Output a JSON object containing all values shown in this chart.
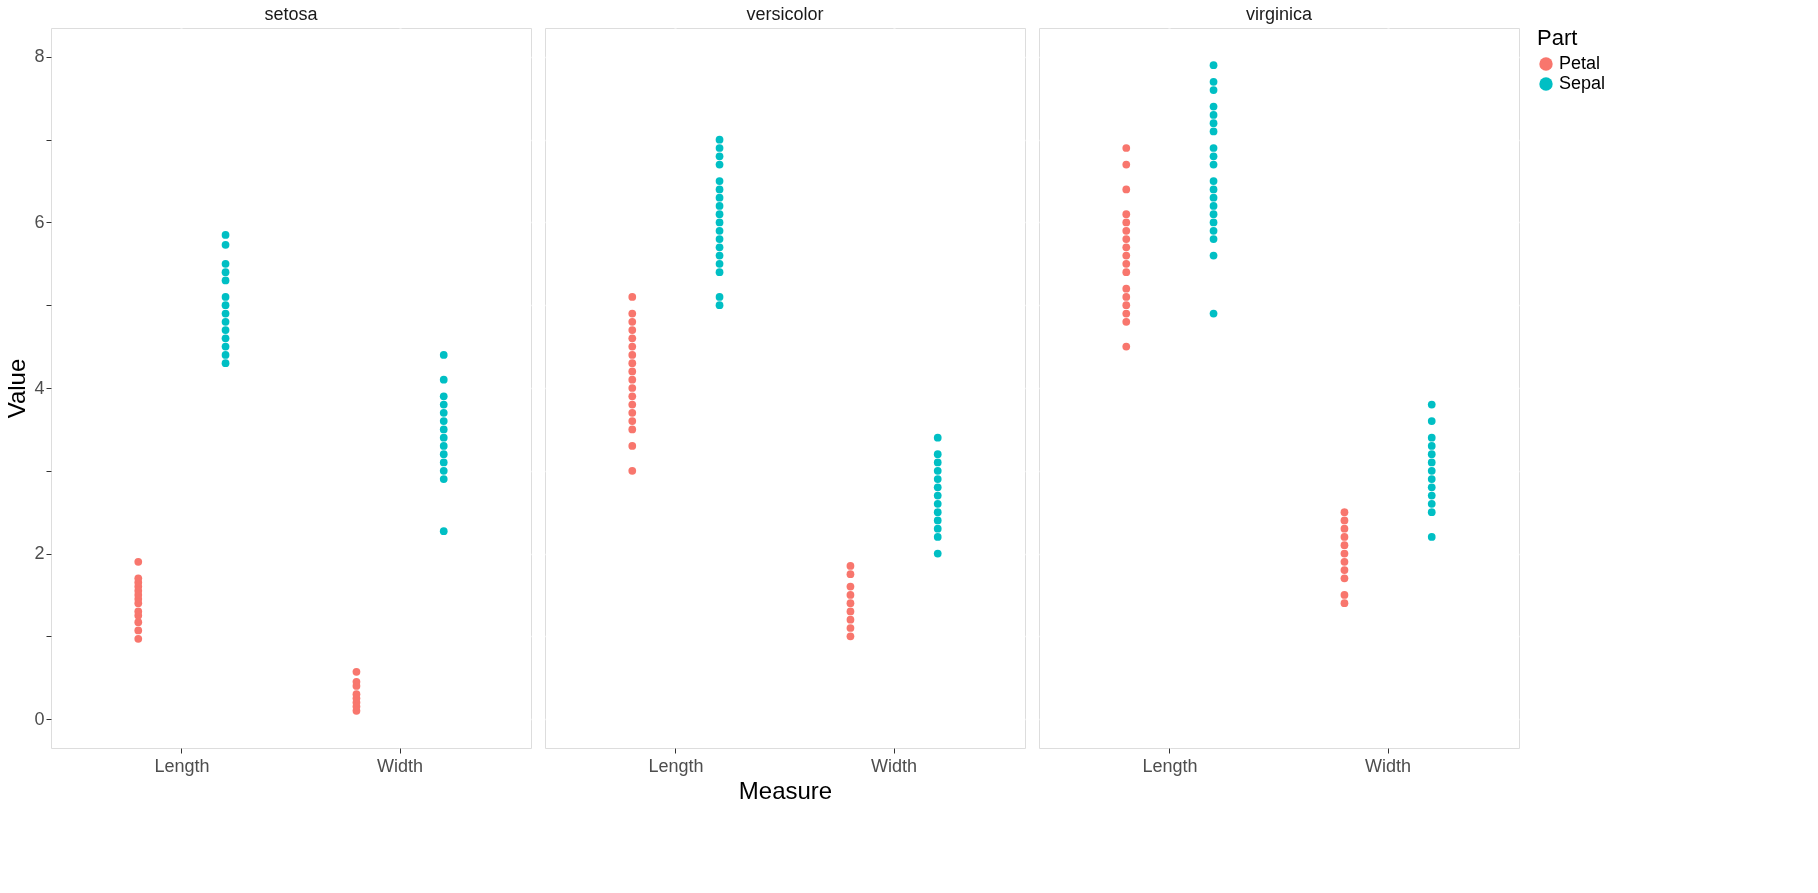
{
  "chart_data": [
    {
      "type": "scatter",
      "title": "setosa",
      "ylabel": "Value",
      "categories": [
        "Length",
        "Width"
      ],
      "ylim": [
        -0.35,
        8.35
      ],
      "yticks": [
        0,
        {
          "value": 1,
          "label": null
        },
        2,
        {
          "value": 3,
          "label": null
        },
        4,
        {
          "value": 5,
          "label": null
        },
        6,
        {
          "value": 7,
          "label": null
        },
        8
      ],
      "grid": true,
      "legend": false,
      "marker": "circle",
      "series": [
        {
          "color": "#f8766d",
          "x": [
            "Length",
            "Length",
            "Length",
            "Length",
            "Length",
            "Length",
            "Length",
            "Length",
            "Length",
            "Length",
            "Length",
            "Length",
            "Length",
            "Width",
            "Width",
            "Width",
            "Width",
            "Width",
            "Width",
            "Width",
            "Width"
          ],
          "values": [
            0.97,
            1.07,
            1.17,
            1.25,
            1.3,
            1.4,
            1.45,
            1.5,
            1.55,
            1.6,
            1.65,
            1.7,
            1.9,
            0.1,
            0.15,
            0.2,
            0.25,
            0.3,
            0.4,
            0.45,
            0.57
          ]
        },
        {
          "color": "#00bfc4",
          "x": [
            "Length",
            "Length",
            "Length",
            "Length",
            "Length",
            "Length",
            "Length",
            "Length",
            "Length",
            "Length",
            "Length",
            "Length",
            "Length",
            "Length",
            "Width",
            "Width",
            "Width",
            "Width",
            "Width",
            "Width",
            "Width",
            "Width",
            "Width",
            "Width",
            "Width",
            "Width",
            "Width",
            "Width"
          ],
          "values": [
            4.3,
            4.4,
            4.5,
            4.6,
            4.7,
            4.8,
            4.9,
            5.0,
            5.1,
            5.3,
            5.4,
            5.5,
            5.73,
            5.85,
            2.27,
            2.9,
            3.0,
            3.1,
            3.2,
            3.3,
            3.4,
            3.5,
            3.6,
            3.7,
            3.8,
            3.9,
            4.1,
            4.4
          ]
        }
      ]
    },
    {
      "type": "scatter",
      "title": "versicolor",
      "xlabel": "Measure",
      "categories": [
        "Length",
        "Width"
      ],
      "ylim": [
        -0.35,
        8.35
      ],
      "yticks": [
        0,
        {
          "value": 1,
          "label": null
        },
        2,
        {
          "value": 3,
          "label": null
        },
        4,
        {
          "value": 5,
          "label": null
        },
        6,
        {
          "value": 7,
          "label": null
        },
        8
      ],
      "tick_labels": "x",
      "grid": true,
      "legend": false,
      "marker": "circle",
      "series": [
        {
          "color": "#f8766d",
          "x": [
            "Length",
            "Length",
            "Length",
            "Length",
            "Length",
            "Length",
            "Length",
            "Length",
            "Length",
            "Length",
            "Length",
            "Length",
            "Length",
            "Length",
            "Length",
            "Length",
            "Length",
            "Length",
            "Width",
            "Width",
            "Width",
            "Width",
            "Width",
            "Width",
            "Width",
            "Width",
            "Width"
          ],
          "values": [
            3.0,
            3.3,
            3.5,
            3.6,
            3.7,
            3.8,
            3.9,
            4.0,
            4.1,
            4.2,
            4.3,
            4.4,
            4.5,
            4.6,
            4.7,
            4.8,
            4.9,
            5.1,
            1.0,
            1.1,
            1.2,
            1.3,
            1.4,
            1.5,
            1.6,
            1.75,
            1.85
          ]
        },
        {
          "color": "#00bfc4",
          "x": [
            "Length",
            "Length",
            "Length",
            "Length",
            "Length",
            "Length",
            "Length",
            "Length",
            "Length",
            "Length",
            "Length",
            "Length",
            "Length",
            "Length",
            "Length",
            "Length",
            "Length",
            "Length",
            "Width",
            "Width",
            "Width",
            "Width",
            "Width",
            "Width",
            "Width",
            "Width",
            "Width",
            "Width",
            "Width",
            "Width",
            "Width"
          ],
          "values": [
            5.0,
            5.1,
            5.4,
            5.5,
            5.6,
            5.7,
            5.8,
            5.9,
            6.0,
            6.1,
            6.2,
            6.3,
            6.4,
            6.5,
            6.7,
            6.8,
            6.9,
            7.0,
            2.0,
            2.2,
            2.3,
            2.4,
            2.5,
            2.6,
            2.7,
            2.8,
            2.9,
            3.0,
            3.1,
            3.2,
            3.4
          ]
        }
      ]
    },
    {
      "type": "scatter",
      "title": "virginica",
      "legend_title": "Part",
      "categories": [
        "Length",
        "Width"
      ],
      "ylim": [
        -0.35,
        8.35
      ],
      "yticks": [
        0,
        {
          "value": 1,
          "label": null
        },
        2,
        {
          "value": 3,
          "label": null
        },
        4,
        {
          "value": 5,
          "label": null
        },
        6,
        {
          "value": 7,
          "label": null
        },
        8
      ],
      "tick_labels": "x",
      "grid": true,
      "legend": "right",
      "marker": "circle",
      "series": [
        {
          "name": "Petal",
          "color": "#f8766d",
          "x": [
            "Length",
            "Length",
            "Length",
            "Length",
            "Length",
            "Length",
            "Length",
            "Length",
            "Length",
            "Length",
            "Length",
            "Length",
            "Length",
            "Length",
            "Length",
            "Length",
            "Length",
            "Width",
            "Width",
            "Width",
            "Width",
            "Width",
            "Width",
            "Width",
            "Width",
            "Width",
            "Width",
            "Width"
          ],
          "values": [
            4.5,
            4.8,
            4.9,
            5.0,
            5.1,
            5.2,
            5.4,
            5.5,
            5.6,
            5.7,
            5.8,
            5.9,
            6.0,
            6.1,
            6.4,
            6.7,
            6.9,
            1.4,
            1.5,
            1.7,
            1.8,
            1.9,
            2.0,
            2.1,
            2.2,
            2.3,
            2.4,
            2.5
          ]
        },
        {
          "name": "Sepal",
          "color": "#00bfc4",
          "x": [
            "Length",
            "Length",
            "Length",
            "Length",
            "Length",
            "Length",
            "Length",
            "Length",
            "Length",
            "Length",
            "Length",
            "Length",
            "Length",
            "Length",
            "Length",
            "Length",
            "Length",
            "Length",
            "Length",
            "Length",
            "Width",
            "Width",
            "Width",
            "Width",
            "Width",
            "Width",
            "Width",
            "Width",
            "Width",
            "Width",
            "Width",
            "Width",
            "Width"
          ],
          "values": [
            4.9,
            5.6,
            5.8,
            5.9,
            6.0,
            6.1,
            6.2,
            6.3,
            6.4,
            6.5,
            6.7,
            6.8,
            6.9,
            7.1,
            7.2,
            7.3,
            7.4,
            7.6,
            7.7,
            7.9,
            2.2,
            2.5,
            2.6,
            2.7,
            2.8,
            2.9,
            3.0,
            3.1,
            3.2,
            3.3,
            3.4,
            3.6,
            3.8
          ]
        }
      ]
    }
  ]
}
